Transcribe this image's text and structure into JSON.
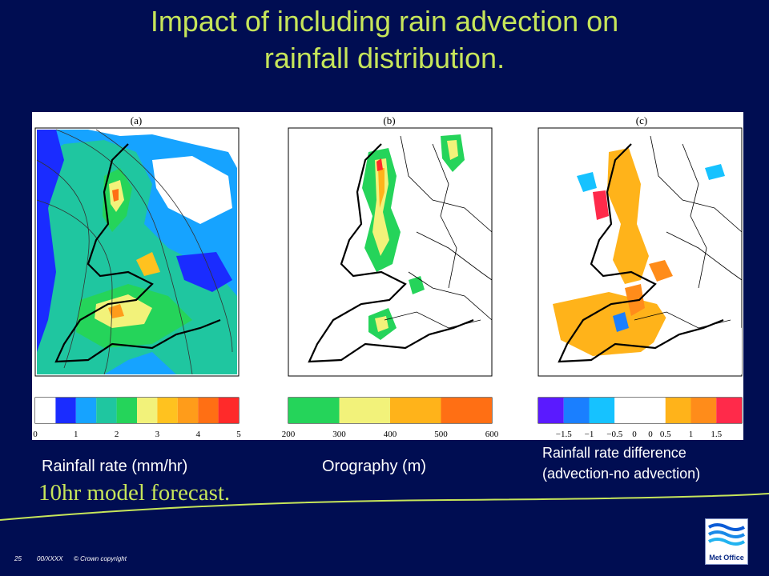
{
  "slide": {
    "title_line1": "Impact of including rain advection on",
    "title_line2": "rainfall distribution.",
    "forecast_note": "10hr model forecast.",
    "colors": {
      "background": "#000d52",
      "title": "#c6e55a",
      "caption": "#ffffff"
    }
  },
  "panels": [
    {
      "label": "(a)",
      "caption": "Rainfall rate (mm/hr)",
      "colorbar_ticks": [
        "0",
        "1",
        "2",
        "3",
        "4",
        "5"
      ],
      "colorbar_colors": [
        "#ffffff",
        "#1a2cff",
        "#16a3ff",
        "#1fc6a0",
        "#25d45a",
        "#f2f27a",
        "#ffc21f",
        "#ff9c1a",
        "#ff6f14",
        "#ff2a2a"
      ]
    },
    {
      "label": "(b)",
      "caption": "Orography (m)",
      "colorbar_ticks": [
        "200",
        "300",
        "400",
        "500",
        "600"
      ],
      "colorbar_colors": [
        "#25d45a",
        "#f2f27a",
        "#ffb31a",
        "#ff6f14"
      ]
    },
    {
      "label": "(c)",
      "caption_line1": "Rainfall rate difference",
      "caption_line2": "(advection-no advection)",
      "colorbar_ticks": [
        "−1.5",
        "−1",
        "−0.5",
        "0",
        "0",
        "0.5",
        "1",
        "1.5"
      ],
      "colorbar_colors": [
        "#5a1aff",
        "#1a7fff",
        "#16c2ff",
        "#ffffff",
        "#ffffff",
        "#ffb31a",
        "#ff8c1a",
        "#ff2a4a"
      ]
    }
  ],
  "footer": {
    "page_number": "25",
    "doc_code": "00/XXXX",
    "copyright": "© Crown copyright"
  },
  "logo": {
    "label": "Met Office"
  }
}
